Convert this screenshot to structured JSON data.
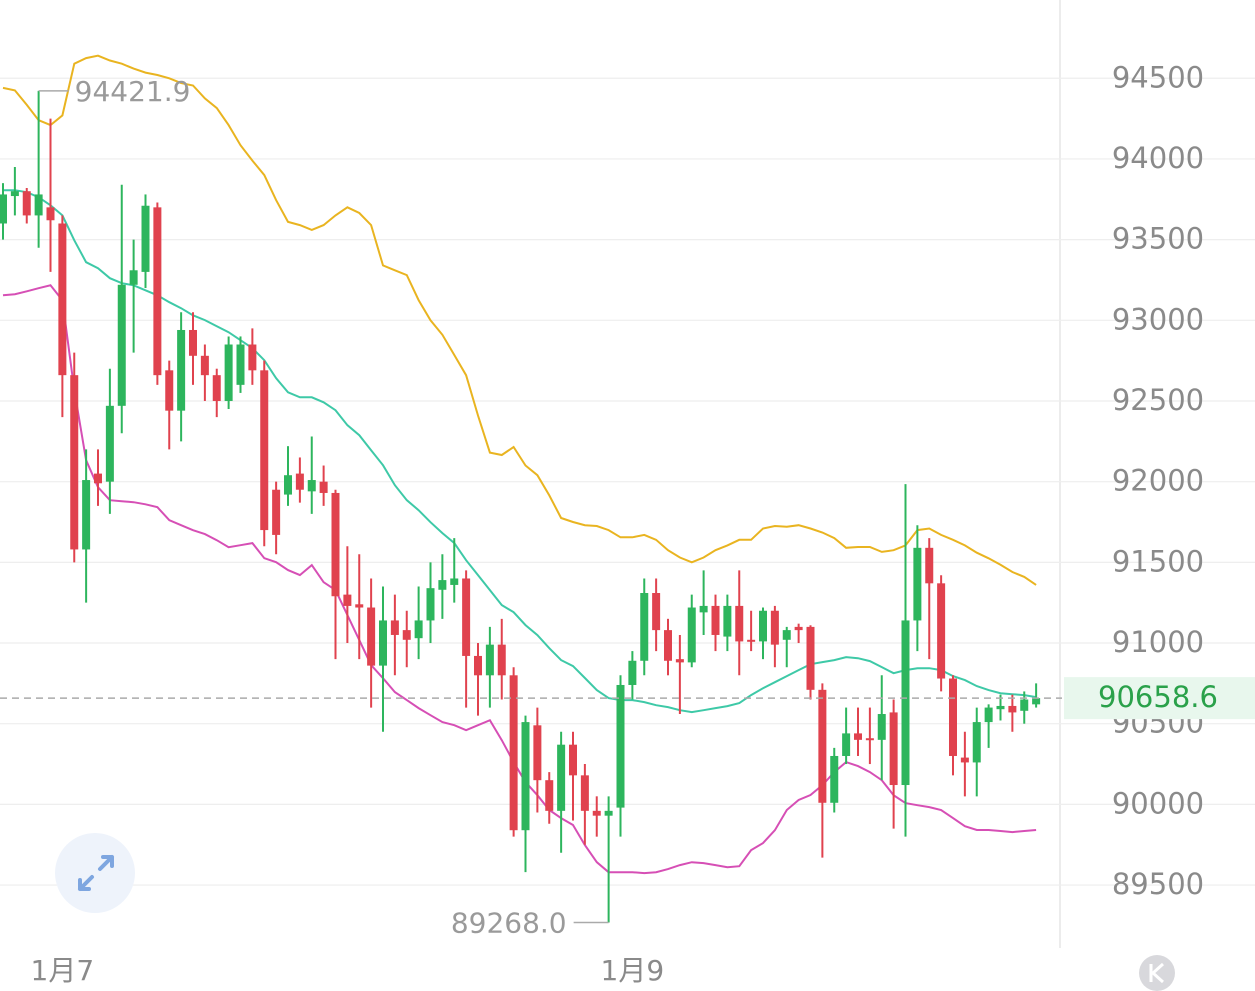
{
  "chart_data": {
    "type": "candlestick",
    "categories": [
      null,
      null,
      null,
      null,
      null,
      "1月7",
      null,
      null,
      null,
      null,
      null,
      null,
      null,
      null,
      null,
      null,
      null,
      null,
      null,
      null,
      null,
      null,
      null,
      null,
      null,
      null,
      null,
      null,
      null,
      null,
      null,
      null,
      null,
      null,
      null,
      null,
      null,
      null,
      null,
      null,
      null,
      null,
      null,
      null,
      null,
      null,
      null,
      null,
      null,
      null,
      null,
      null,
      null,
      "1月9",
      null,
      null,
      null,
      null,
      null,
      null,
      null,
      null,
      null,
      null,
      null,
      null,
      null,
      null,
      null,
      null,
      null,
      null,
      null,
      null,
      null,
      null,
      null,
      null,
      null,
      null,
      null,
      null,
      null,
      null,
      null,
      null,
      null,
      null
    ],
    "open": [
      93600,
      93770,
      93800,
      93650,
      93700,
      93600,
      92660,
      91580,
      92050,
      92000,
      92470,
      93220,
      93300,
      93700,
      92690,
      92440,
      92940,
      92780,
      92660,
      92500,
      92600,
      92850,
      92690,
      91950,
      91920,
      92050,
      91940,
      92000,
      91930,
      91300,
      91240,
      91220,
      90860,
      91140,
      91080,
      91030,
      91140,
      91330,
      91360,
      91400,
      90920,
      90800,
      90990,
      90800,
      89840,
      90490,
      90150,
      89960,
      90370,
      90180,
      89960,
      89930,
      89980,
      90740,
      90890,
      91310,
      91080,
      90900,
      90880,
      91190,
      91230,
      91040,
      91230,
      91020,
      91010,
      91200,
      91020,
      91100,
      91100,
      90710,
      90010,
      90300,
      90440,
      90410,
      90400,
      90570,
      90120,
      91140,
      91590,
      91370,
      90780,
      90290,
      90260,
      90510,
      90590,
      90610,
      90580,
      90620
    ],
    "high": [
      93850,
      93950,
      93820,
      94421.9,
      94250,
      93650,
      92800,
      92200,
      92200,
      92700,
      93840,
      93500,
      93780,
      93730,
      92750,
      93050,
      93050,
      92850,
      92700,
      92900,
      92900,
      92950,
      92750,
      92000,
      92220,
      92150,
      92280,
      92100,
      91950,
      91600,
      91550,
      91400,
      91350,
      91300,
      91200,
      91350,
      91500,
      91550,
      91650,
      91450,
      91000,
      91100,
      91150,
      90850,
      90550,
      90600,
      90200,
      90450,
      90450,
      90250,
      90050,
      90050,
      90800,
      90950,
      91400,
      91400,
      91150,
      91050,
      91300,
      91450,
      91300,
      91300,
      91450,
      91200,
      91220,
      91230,
      91100,
      91120,
      91110,
      90750,
      90350,
      90600,
      90600,
      90600,
      90800,
      90650,
      91985,
      91730,
      91650,
      91420,
      90800,
      90450,
      90600,
      90620,
      90680,
      90680,
      90700,
      90750
    ],
    "low": [
      93500,
      93650,
      93600,
      93450,
      93300,
      92400,
      91500,
      91250,
      91850,
      91800,
      92300,
      92800,
      93200,
      92600,
      92200,
      92250,
      92600,
      92500,
      92400,
      92450,
      92550,
      92600,
      91600,
      91550,
      91850,
      91870,
      91800,
      91850,
      90900,
      91000,
      90900,
      90600,
      90450,
      90800,
      90850,
      90900,
      91000,
      91150,
      91250,
      90600,
      90550,
      90600,
      90650,
      89800,
      89580,
      89950,
      89880,
      89700,
      89900,
      89750,
      89800,
      89268,
      89800,
      90650,
      90800,
      90950,
      90800,
      90560,
      90850,
      91050,
      90950,
      90950,
      90800,
      90950,
      90900,
      90850,
      90850,
      91000,
      90650,
      89670,
      89950,
      90250,
      90300,
      90250,
      90150,
      89850,
      89800,
      90950,
      90900,
      90700,
      90180,
      90050,
      90050,
      90350,
      90520,
      90450,
      90500,
      90600
    ],
    "close": [
      93780,
      93800,
      93650,
      93780,
      93620,
      92660,
      91580,
      92010,
      91990,
      92470,
      93220,
      93310,
      93710,
      92660,
      92440,
      92940,
      92780,
      92660,
      92500,
      92850,
      92850,
      92690,
      91700,
      91670,
      92040,
      91950,
      92010,
      91930,
      91290,
      91230,
      91220,
      90860,
      91140,
      91050,
      91020,
      91140,
      91340,
      91390,
      91400,
      90920,
      90800,
      90990,
      90800,
      89840,
      90510,
      90150,
      89960,
      90370,
      90180,
      89960,
      89930,
      89960,
      90740,
      90890,
      91310,
      91080,
      90890,
      90880,
      91220,
      91230,
      91050,
      91230,
      91010,
      91010,
      91200,
      90990,
      91080,
      91080,
      90710,
      90010,
      90300,
      90440,
      90400,
      90400,
      90560,
      90120,
      91140,
      91590,
      91370,
      90780,
      90300,
      90260,
      90510,
      90600,
      90610,
      90570,
      90650,
      90658.6
    ],
    "up_color": "#2db55d",
    "down_color": "#e0424e",
    "bands": [
      {
        "color": "#e9b420",
        "values": [
          94440,
          94425,
          94335,
          94240,
          94210,
          94270,
          94590,
          94625,
          94640,
          94610,
          94590,
          94560,
          94535,
          94520,
          94500,
          94470,
          94455,
          94375,
          94315,
          94210,
          94085,
          93990,
          93900,
          93745,
          93610,
          93590,
          93560,
          93590,
          93650,
          93700,
          93665,
          93590,
          93340,
          93310,
          93280,
          93125,
          93000,
          92910,
          92785,
          92660,
          92410,
          92180,
          92165,
          92215,
          92100,
          92040,
          91915,
          91775,
          91750,
          91730,
          91725,
          91700,
          91655,
          91655,
          91670,
          91640,
          91575,
          91530,
          91500,
          91530,
          91575,
          91605,
          91640,
          91640,
          91710,
          91725,
          91720,
          91730,
          91710,
          91685,
          91650,
          91590,
          91595,
          91595,
          91565,
          91575,
          91605,
          91700,
          91710,
          91670,
          91640,
          91605,
          91560,
          91525,
          91485,
          91440,
          91410,
          91360
        ]
      },
      {
        "color": "#3ec9a7",
        "values": [
          93806,
          93806,
          93794,
          93763,
          93713,
          93650,
          93496,
          93360,
          93323,
          93261,
          93230,
          93217,
          93186,
          93155,
          93112,
          93075,
          93031,
          93001,
          92963,
          92926,
          92877,
          92827,
          92753,
          92641,
          92554,
          92523,
          92523,
          92492,
          92443,
          92350,
          92288,
          92195,
          92102,
          91978,
          91885,
          91823,
          91749,
          91681,
          91619,
          91513,
          91421,
          91328,
          91235,
          91191,
          91111,
          91049,
          90968,
          90894,
          90857,
          90783,
          90708,
          90659,
          90646,
          90646,
          90634,
          90615,
          90603,
          90584,
          90572,
          90584,
          90597,
          90609,
          90628,
          90677,
          90720,
          90757,
          90795,
          90832,
          90869,
          90882,
          90894,
          90913,
          90906,
          90888,
          90851,
          90813,
          90832,
          90844,
          90844,
          90832,
          90795,
          90770,
          90733,
          90708,
          90689,
          90683,
          90677,
          90665
        ]
      },
      {
        "color": "#d64fb5",
        "values": [
          93155,
          93162,
          93180,
          93199,
          93217,
          93124,
          92567,
          92133,
          91966,
          91885,
          91879,
          91873,
          91860,
          91842,
          91761,
          91730,
          91699,
          91675,
          91637,
          91594,
          91606,
          91619,
          91526,
          91501,
          91452,
          91421,
          91483,
          91377,
          91328,
          91173,
          91018,
          90863,
          90782,
          90696,
          90646,
          90597,
          90553,
          90510,
          90491,
          90460,
          90491,
          90522,
          90398,
          90262,
          90138,
          90057,
          89965,
          89915,
          89872,
          89748,
          89642,
          89580,
          89580,
          89580,
          89574,
          89580,
          89599,
          89624,
          89642,
          89636,
          89624,
          89611,
          89617,
          89717,
          89760,
          89840,
          89965,
          90027,
          90058,
          90119,
          90200,
          90262,
          90237,
          90200,
          90150,
          90057,
          90008,
          89995,
          89983,
          89965,
          89915,
          89865,
          89841,
          89841,
          89835,
          89828,
          89835,
          89841
        ]
      }
    ],
    "max_label": {
      "value": 94421.9,
      "label": "94421.9"
    },
    "min_label": {
      "value": 89268,
      "label": "89268.0"
    },
    "last_price": {
      "value": 90658.6,
      "label": "90658.6",
      "color": "#2aa14a"
    },
    "ylim": [
      89110,
      94985
    ],
    "yticks": [
      89500,
      90000,
      90500,
      91000,
      91500,
      92000,
      92500,
      93000,
      93500,
      94000,
      94500
    ],
    "grid": true
  }
}
